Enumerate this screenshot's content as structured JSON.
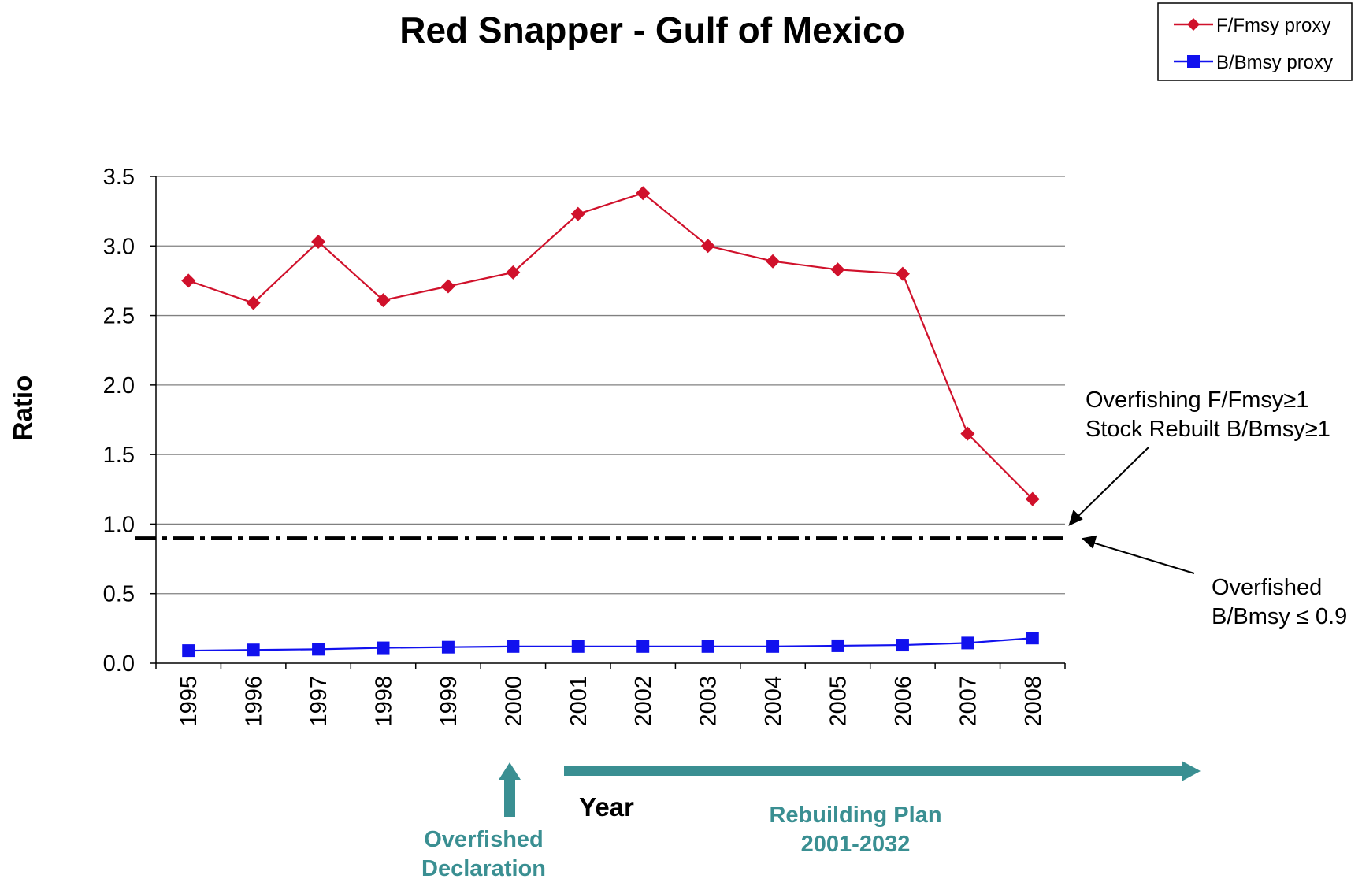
{
  "chart_data": {
    "type": "line",
    "title": "Red Snapper - Gulf of Mexico",
    "xlabel": "Year",
    "ylabel": "Ratio",
    "categories": [
      "1995",
      "1996",
      "1997",
      "1998",
      "1999",
      "2000",
      "2001",
      "2002",
      "2003",
      "2004",
      "2005",
      "2006",
      "2007",
      "2008"
    ],
    "ylim": [
      0,
      3.5
    ],
    "yticks": [
      "0.0",
      "0.5",
      "1.0",
      "1.5",
      "2.0",
      "2.5",
      "3.0",
      "3.5"
    ],
    "grid": true,
    "legend_position": "top-right",
    "series": [
      {
        "name": "F/Fmsy proxy",
        "color": "#d0112b",
        "marker": "diamond",
        "values": [
          2.75,
          2.59,
          3.03,
          2.61,
          2.71,
          2.81,
          3.23,
          3.38,
          3.0,
          2.89,
          2.83,
          2.8,
          1.65,
          1.18
        ]
      },
      {
        "name": "B/Bmsy proxy",
        "color": "#1111ee",
        "marker": "square",
        "values": [
          0.09,
          0.095,
          0.1,
          0.11,
          0.115,
          0.12,
          0.12,
          0.12,
          0.12,
          0.12,
          0.125,
          0.13,
          0.145,
          0.18
        ]
      }
    ],
    "reference_line": {
      "value": 0.9,
      "style": "dash-dot"
    },
    "annotations": {
      "overfishing_line1": "Overfishing F/Fmsy≥1",
      "overfishing_line2": "Stock Rebuilt B/Bmsy≥1",
      "overfished_line1": "Overfished",
      "overfished_line2": "B/Bmsy ≤ 0.9",
      "declaration_line1": "Overfished",
      "declaration_line2": "Declaration",
      "rebuilding_line1": "Rebuilding Plan",
      "rebuilding_line2": "2001-2032"
    },
    "annotation_color": "#3a8f92"
  }
}
